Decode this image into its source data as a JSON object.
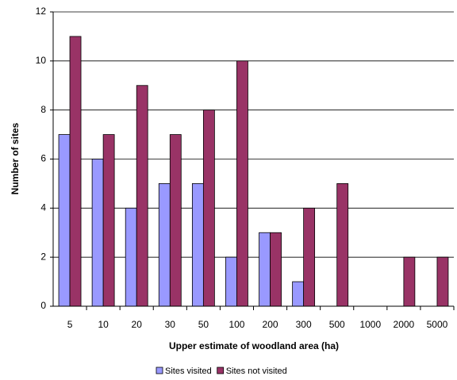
{
  "chart_data": {
    "type": "bar",
    "x_label": "Upper estimate of woodland area (ha)",
    "y_label": "Number of sites",
    "categories": [
      "5",
      "10",
      "20",
      "30",
      "50",
      "100",
      "200",
      "300",
      "500",
      "1000",
      "2000",
      "5000"
    ],
    "series": [
      {
        "name": "Sites visited",
        "color": "#9999ff",
        "values": [
          7,
          6,
          4,
          5,
          5,
          2,
          3,
          1,
          0,
          0,
          0,
          0
        ]
      },
      {
        "name": "Sites not visited",
        "color": "#993366",
        "values": [
          11,
          7,
          9,
          7,
          8,
          10,
          3,
          4,
          5,
          0,
          2,
          2
        ]
      }
    ],
    "ylim": [
      0,
      12
    ],
    "yticks": [
      0,
      2,
      4,
      6,
      8,
      10,
      12
    ],
    "grid": true,
    "legend": "bottom"
  }
}
